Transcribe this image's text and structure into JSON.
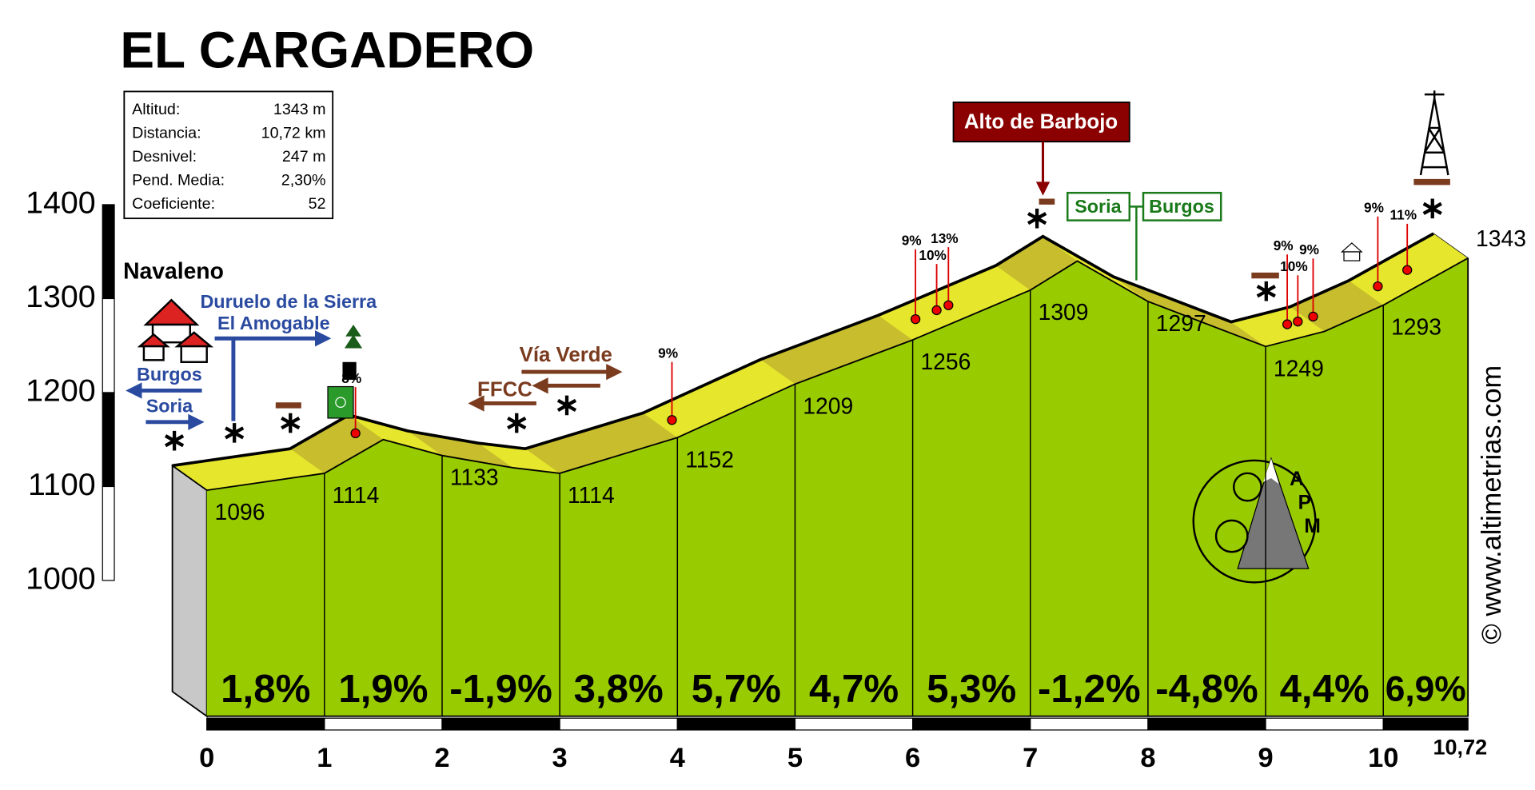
{
  "chart_data": {
    "type": "profile",
    "title": "EL CARGADERO",
    "info": [
      {
        "label": "Altitud:",
        "value": "1343 m"
      },
      {
        "label": "Distancia:",
        "value": "10,72 km"
      },
      {
        "label": "Desnivel:",
        "value": "247 m"
      },
      {
        "label": "Pend. Media:",
        "value": "2,30%"
      },
      {
        "label": "Coeficiente:",
        "value": "52"
      }
    ],
    "profile": {
      "x": [
        0,
        1,
        1.5,
        2,
        2.6,
        3,
        4,
        5,
        6,
        7,
        7.4,
        8,
        9,
        9.5,
        10,
        10.72
      ],
      "values": [
        1096,
        1114,
        1150,
        1133,
        1120,
        1114,
        1152,
        1209,
        1256,
        1309,
        1340,
        1297,
        1249,
        1265,
        1293,
        1343
      ]
    },
    "segments": {
      "values": [
        1.8,
        1.9,
        -1.9,
        3.8,
        5.7,
        4.7,
        5.3,
        -1.2,
        -4.8,
        4.4,
        6.9
      ],
      "value_labels": [
        "1,8%",
        "1,9%",
        "-1,9%",
        "3,8%",
        "5,7%",
        "4,7%",
        "5,3%",
        "-1,2%",
        "-4,8%",
        "4,4%",
        "6,9%"
      ]
    },
    "ylim": [
      1000,
      1400
    ],
    "yticks": [
      1000,
      1100,
      1200,
      1300,
      1400
    ],
    "xlim": [
      0,
      10.72
    ],
    "xticks": [
      0,
      1,
      2,
      3,
      4,
      5,
      6,
      7,
      8,
      9,
      10,
      {
        "value": 10.72,
        "label": "10,72"
      }
    ],
    "gradient_markers": [
      {
        "x": 1.41,
        "label": "8%"
      },
      {
        "x": 4.1,
        "label": "9%"
      },
      {
        "x": 6.17,
        "label": "9%"
      },
      {
        "x": 6.35,
        "label": "10%"
      },
      {
        "x": 6.45,
        "label": "13%"
      },
      {
        "x": 9.33,
        "label": "9%"
      },
      {
        "x": 9.42,
        "label": "10%"
      },
      {
        "x": 9.55,
        "label": "9%"
      },
      {
        "x": 10.1,
        "label": "9%"
      },
      {
        "x": 10.35,
        "label": "11%"
      }
    ],
    "annotations": {
      "start": "Navaleno",
      "duruelo": "Duruelo de la Sierra",
      "amogable": "El Amogable",
      "burgos_left": "Burgos",
      "soria_left": "Soria",
      "via_verde": "Vía Verde",
      "ffcc": "FFCC",
      "summit": "Alto de Barbojo",
      "soria_border": "Soria",
      "burgos_border": "Burgos",
      "credit": "© www.altimetrias.com"
    },
    "logo_letters": [
      "A",
      "P",
      "M"
    ]
  }
}
